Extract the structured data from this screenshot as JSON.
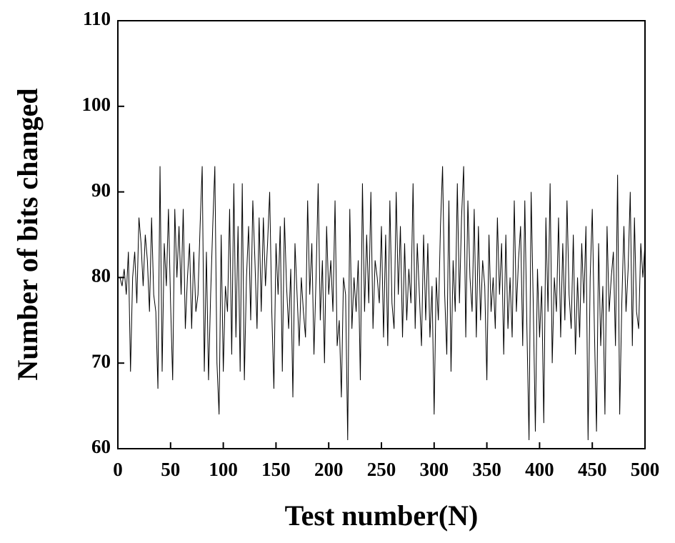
{
  "chart_data": {
    "type": "line",
    "x_label": "Test number(N)",
    "y_label": "Number of bits changed",
    "xlim": [
      0,
      500
    ],
    "ylim": [
      60,
      110
    ],
    "xticks": [
      0,
      50,
      100,
      150,
      200,
      250,
      300,
      350,
      400,
      450,
      500
    ],
    "yticks": [
      60,
      70,
      80,
      90,
      100,
      110
    ],
    "color": "#000000",
    "x": [
      2,
      4,
      6,
      8,
      10,
      12,
      14,
      16,
      18,
      20,
      22,
      24,
      26,
      28,
      30,
      32,
      34,
      36,
      38,
      40,
      42,
      44,
      46,
      48,
      50,
      52,
      54,
      56,
      58,
      60,
      62,
      64,
      66,
      68,
      70,
      72,
      74,
      76,
      78,
      80,
      82,
      84,
      86,
      88,
      90,
      92,
      94,
      96,
      98,
      100,
      102,
      104,
      106,
      108,
      110,
      112,
      114,
      116,
      118,
      120,
      122,
      124,
      126,
      128,
      130,
      132,
      134,
      136,
      138,
      140,
      142,
      144,
      146,
      148,
      150,
      152,
      154,
      156,
      158,
      160,
      162,
      164,
      166,
      168,
      170,
      172,
      174,
      176,
      178,
      180,
      182,
      184,
      186,
      188,
      190,
      192,
      194,
      196,
      198,
      200,
      202,
      204,
      206,
      208,
      210,
      212,
      214,
      216,
      218,
      220,
      222,
      224,
      226,
      228,
      230,
      232,
      234,
      236,
      238,
      240,
      242,
      244,
      246,
      248,
      250,
      252,
      254,
      256,
      258,
      260,
      262,
      264,
      266,
      268,
      270,
      272,
      274,
      276,
      278,
      280,
      282,
      284,
      286,
      288,
      290,
      292,
      294,
      296,
      298,
      300,
      302,
      304,
      306,
      308,
      310,
      312,
      314,
      316,
      318,
      320,
      322,
      324,
      326,
      328,
      330,
      332,
      334,
      336,
      338,
      340,
      342,
      344,
      346,
      348,
      350,
      352,
      354,
      356,
      358,
      360,
      362,
      364,
      366,
      368,
      370,
      372,
      374,
      376,
      378,
      380,
      382,
      384,
      386,
      388,
      390,
      392,
      394,
      396,
      398,
      400,
      402,
      404,
      406,
      408,
      410,
      412,
      414,
      416,
      418,
      420,
      422,
      424,
      426,
      428,
      430,
      432,
      434,
      436,
      438,
      440,
      442,
      444,
      446,
      448,
      450,
      452,
      454,
      456,
      458,
      460,
      462,
      464,
      466,
      468,
      470,
      472,
      474,
      476,
      478,
      480,
      482,
      484,
      486,
      488,
      490,
      492,
      494,
      496,
      498,
      500
    ],
    "values": [
      80,
      79,
      81,
      78,
      83,
      69,
      80,
      83,
      77,
      87,
      84,
      79,
      85,
      82,
      76,
      87,
      78,
      76,
      67,
      93,
      69,
      84,
      79,
      88,
      77,
      68,
      88,
      80,
      86,
      78,
      88,
      74,
      80,
      84,
      74,
      83,
      76,
      78,
      86,
      93,
      69,
      83,
      68,
      78,
      86,
      93,
      70,
      64,
      85,
      69,
      79,
      76,
      88,
      71,
      91,
      73,
      86,
      69,
      91,
      68,
      80,
      86,
      75,
      89,
      82,
      74,
      87,
      76,
      87,
      79,
      84,
      90,
      76,
      67,
      84,
      78,
      86,
      69,
      87,
      79,
      74,
      81,
      66,
      84,
      78,
      72,
      80,
      76,
      73,
      89,
      78,
      84,
      71,
      80,
      91,
      75,
      82,
      70,
      86,
      78,
      82,
      76,
      89,
      72,
      75,
      66,
      80,
      78,
      61,
      88,
      74,
      80,
      76,
      82,
      68,
      91,
      76,
      85,
      77,
      90,
      74,
      82,
      80,
      77,
      86,
      73,
      85,
      72,
      89,
      77,
      74,
      90,
      78,
      86,
      73,
      84,
      75,
      81,
      77,
      91,
      74,
      84,
      78,
      72,
      85,
      75,
      84,
      73,
      79,
      64,
      80,
      75,
      86,
      93,
      78,
      71,
      89,
      69,
      82,
      76,
      91,
      77,
      87,
      93,
      73,
      89,
      80,
      76,
      88,
      73,
      86,
      75,
      82,
      79,
      68,
      85,
      76,
      80,
      74,
      87,
      78,
      84,
      71,
      85,
      74,
      80,
      73,
      89,
      76,
      82,
      86,
      72,
      89,
      74,
      61,
      90,
      77,
      62,
      81,
      73,
      79,
      63,
      87,
      76,
      91,
      70,
      80,
      76,
      87,
      73,
      84,
      75,
      89,
      78,
      74,
      85,
      71,
      80,
      73,
      84,
      77,
      86,
      61,
      80,
      88,
      74,
      62,
      84,
      72,
      79,
      64,
      86,
      76,
      80,
      83,
      72,
      92,
      64,
      77,
      86,
      76,
      81,
      90,
      72,
      87,
      76,
      74,
      84,
      80,
      84
    ]
  }
}
